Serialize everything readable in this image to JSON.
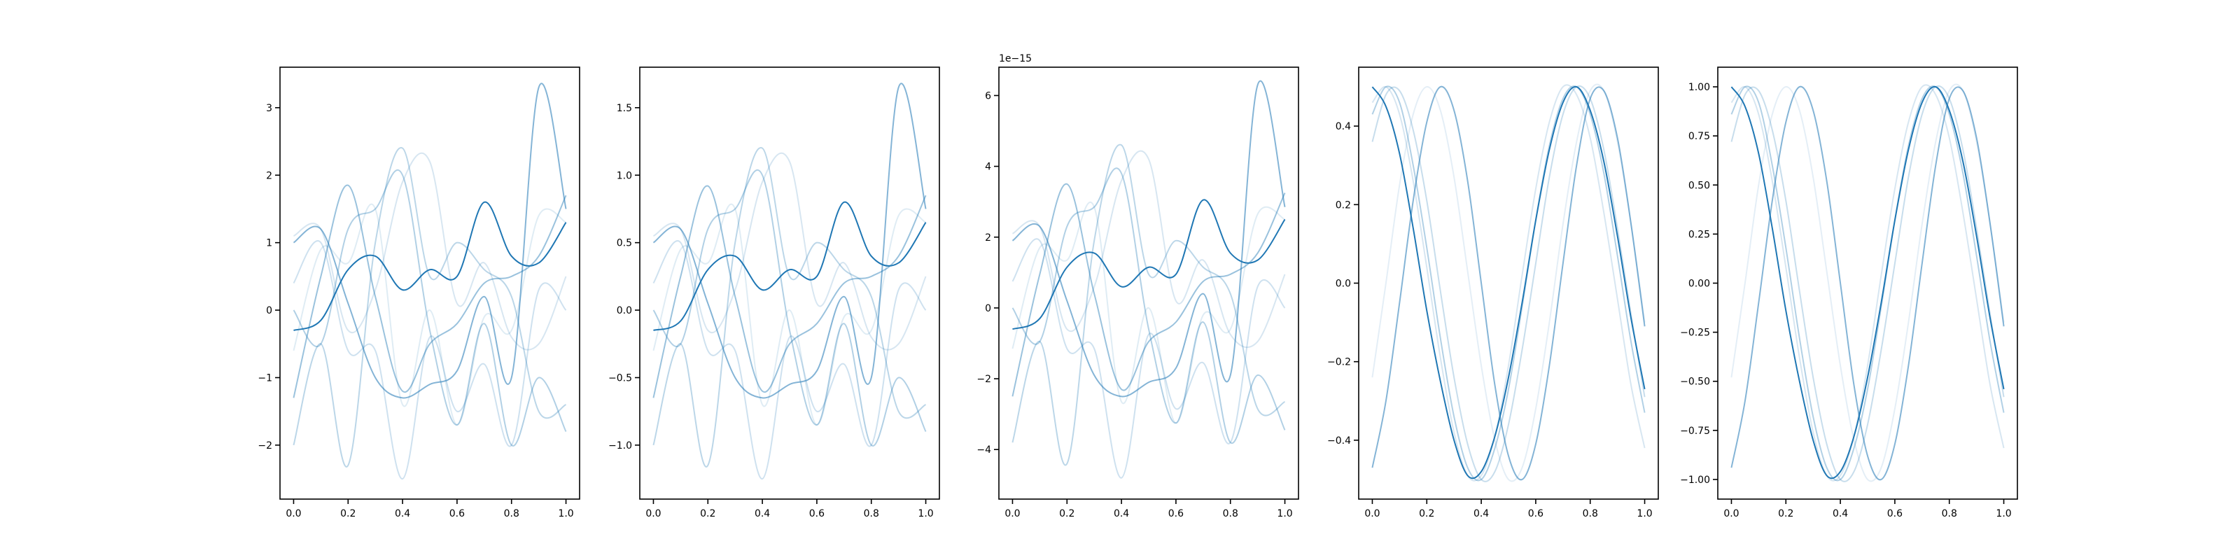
{
  "figure": {
    "background": "#ffffff",
    "line_color": "#1f77b4",
    "frame_color": "#000000"
  },
  "chart_data": [
    {
      "type": "line",
      "xlim": [
        -0.05,
        1.05
      ],
      "ylim": [
        -2.8,
        3.6
      ],
      "xticks": [
        0,
        0.2,
        0.4,
        0.6,
        0.8,
        1
      ],
      "xtick_labels": [
        "0.0",
        "0.2",
        "0.4",
        "0.6",
        "0.8",
        "1.0"
      ],
      "yticks": [
        -2,
        -1,
        0,
        1,
        2,
        3
      ],
      "ytick_labels": [
        "−2",
        "−1",
        "0",
        "1",
        "2",
        "3"
      ],
      "offset_text": "",
      "x": [
        0,
        0.1,
        0.2,
        0.3,
        0.4,
        0.5,
        0.6,
        0.7,
        0.8,
        0.9,
        1.0
      ],
      "series": [
        {
          "opacity": 1.0,
          "values": [
            -0.3,
            -0.15,
            0.6,
            0.8,
            0.3,
            0.6,
            0.5,
            1.6,
            0.8,
            0.7,
            1.3
          ]
        },
        {
          "opacity": 0.55,
          "values": [
            1.0,
            1.2,
            0.1,
            -1.0,
            -1.3,
            -1.1,
            -0.9,
            0.2,
            -1.0,
            3.3,
            1.5
          ]
        },
        {
          "opacity": 0.45,
          "values": [
            -1.3,
            0.5,
            1.85,
            0.2,
            -1.2,
            -0.5,
            -0.2,
            0.4,
            0.5,
            0.8,
            1.7
          ]
        },
        {
          "opacity": 0.35,
          "values": [
            0.0,
            -0.5,
            1.2,
            1.5,
            2.0,
            -0.3,
            -1.7,
            -0.2,
            -2.0,
            -1.0,
            -1.8
          ]
        },
        {
          "opacity": 0.3,
          "values": [
            -2.0,
            -0.5,
            -2.3,
            1.0,
            2.4,
            0.5,
            1.0,
            0.6,
            0.2,
            -1.5,
            -1.4
          ]
        },
        {
          "opacity": 0.22,
          "values": [
            0.4,
            1.0,
            -0.6,
            -0.6,
            -2.5,
            -0.4,
            -1.5,
            -0.8,
            -2.0,
            0.3,
            0.0
          ]
        },
        {
          "opacity": 0.18,
          "values": [
            1.1,
            1.2,
            -0.3,
            0.3,
            1.9,
            2.2,
            0.1,
            0.7,
            -0.4,
            -0.5,
            0.5
          ]
        },
        {
          "opacity": 0.14,
          "values": [
            -0.6,
            0.9,
            0.7,
            1.5,
            -1.4,
            0.0,
            -1.7,
            -0.1,
            -0.3,
            1.4,
            1.3
          ]
        }
      ]
    },
    {
      "type": "line",
      "xlim": [
        -0.05,
        1.05
      ],
      "ylim": [
        -1.4,
        1.8
      ],
      "xticks": [
        0,
        0.2,
        0.4,
        0.6,
        0.8,
        1
      ],
      "xtick_labels": [
        "0.0",
        "0.2",
        "0.4",
        "0.6",
        "0.8",
        "1.0"
      ],
      "yticks": [
        -1.0,
        -0.5,
        0.0,
        0.5,
        1.0,
        1.5
      ],
      "ytick_labels": [
        "−1.0",
        "−0.5",
        "0.0",
        "0.5",
        "1.0",
        "1.5"
      ],
      "offset_text": "",
      "x": [
        0,
        0.1,
        0.2,
        0.3,
        0.4,
        0.5,
        0.6,
        0.7,
        0.8,
        0.9,
        1.0
      ],
      "series": [
        {
          "opacity": 1.0,
          "values": [
            -0.15,
            -0.08,
            0.3,
            0.4,
            0.15,
            0.3,
            0.25,
            0.8,
            0.4,
            0.35,
            0.65
          ]
        },
        {
          "opacity": 0.55,
          "values": [
            0.5,
            0.6,
            0.05,
            -0.5,
            -0.65,
            -0.55,
            -0.45,
            0.1,
            -0.5,
            1.65,
            0.75
          ]
        },
        {
          "opacity": 0.45,
          "values": [
            -0.65,
            0.25,
            0.92,
            0.1,
            -0.6,
            -0.25,
            -0.1,
            0.2,
            0.25,
            0.4,
            0.85
          ]
        },
        {
          "opacity": 0.35,
          "values": [
            0.0,
            -0.25,
            0.6,
            0.75,
            1.0,
            -0.15,
            -0.85,
            -0.1,
            -1.0,
            -0.5,
            -0.9
          ]
        },
        {
          "opacity": 0.3,
          "values": [
            -1.0,
            -0.25,
            -1.15,
            0.5,
            1.2,
            0.25,
            0.5,
            0.3,
            0.1,
            -0.75,
            -0.7
          ]
        },
        {
          "opacity": 0.22,
          "values": [
            0.2,
            0.5,
            -0.3,
            -0.3,
            -1.25,
            -0.2,
            -0.75,
            -0.4,
            -1.0,
            0.15,
            0.0
          ]
        },
        {
          "opacity": 0.18,
          "values": [
            0.55,
            0.6,
            -0.15,
            0.15,
            0.95,
            1.1,
            0.05,
            0.35,
            -0.2,
            -0.25,
            0.25
          ]
        },
        {
          "opacity": 0.14,
          "values": [
            -0.3,
            0.45,
            0.35,
            0.75,
            -0.7,
            0.0,
            -0.85,
            -0.05,
            -0.15,
            0.7,
            0.65
          ]
        }
      ]
    },
    {
      "type": "line",
      "xlim": [
        -0.05,
        1.05
      ],
      "ylim": [
        -5.4,
        6.8
      ],
      "xticks": [
        0,
        0.2,
        0.4,
        0.6,
        0.8,
        1
      ],
      "xtick_labels": [
        "0.0",
        "0.2",
        "0.4",
        "0.6",
        "0.8",
        "1.0"
      ],
      "yticks": [
        -4,
        -2,
        0,
        2,
        4,
        6
      ],
      "ytick_labels": [
        "−4",
        "−2",
        "0",
        "2",
        "4",
        "6"
      ],
      "offset_text": "1e−15",
      "x": [
        0,
        0.1,
        0.2,
        0.3,
        0.4,
        0.5,
        0.6,
        0.7,
        0.8,
        0.9,
        1.0
      ],
      "series": [
        {
          "opacity": 1.0,
          "values": [
            -0.6,
            -0.3,
            1.15,
            1.55,
            0.6,
            1.15,
            0.95,
            3.05,
            1.55,
            1.35,
            2.5
          ]
        },
        {
          "opacity": 0.55,
          "values": [
            1.9,
            2.3,
            0.2,
            -1.9,
            -2.5,
            -2.1,
            -1.7,
            0.4,
            -1.9,
            6.3,
            2.85
          ]
        },
        {
          "opacity": 0.45,
          "values": [
            -2.5,
            0.95,
            3.5,
            0.4,
            -2.3,
            -0.95,
            -0.4,
            0.75,
            0.95,
            1.55,
            3.25
          ]
        },
        {
          "opacity": 0.35,
          "values": [
            0.0,
            -0.95,
            2.3,
            2.85,
            3.8,
            -0.6,
            -3.25,
            -0.4,
            -3.8,
            -1.9,
            -3.45
          ]
        },
        {
          "opacity": 0.3,
          "values": [
            -3.8,
            -0.95,
            -4.4,
            1.9,
            4.6,
            0.95,
            1.9,
            1.15,
            0.4,
            -2.85,
            -2.65
          ]
        },
        {
          "opacity": 0.22,
          "values": [
            0.75,
            1.9,
            -1.15,
            -1.15,
            -4.8,
            -0.75,
            -2.85,
            -1.55,
            -3.8,
            0.6,
            0.0
          ]
        },
        {
          "opacity": 0.18,
          "values": [
            2.1,
            2.3,
            -0.6,
            0.6,
            3.6,
            4.2,
            0.2,
            1.35,
            -0.75,
            -0.95,
            0.95
          ]
        },
        {
          "opacity": 0.14,
          "values": [
            -1.15,
            1.7,
            1.35,
            2.85,
            -2.65,
            0.0,
            -3.25,
            -0.2,
            -0.6,
            2.65,
            2.5
          ]
        }
      ]
    },
    {
      "type": "line",
      "xlim": [
        -0.05,
        1.05
      ],
      "ylim": [
        -0.55,
        0.55
      ],
      "xticks": [
        0,
        0.2,
        0.4,
        0.6,
        0.8,
        1
      ],
      "xtick_labels": [
        "0.0",
        "0.2",
        "0.4",
        "0.6",
        "0.8",
        "1.0"
      ],
      "yticks": [
        -0.4,
        -0.2,
        0.0,
        0.2,
        0.4
      ],
      "ytick_labels": [
        "−0.4",
        "−0.2",
        "0.0",
        "0.2",
        "0.4"
      ],
      "offset_text": "",
      "x": [
        0,
        0.05,
        0.1,
        0.15,
        0.2,
        0.25,
        0.3,
        0.35,
        0.4,
        0.45,
        0.5,
        0.55,
        0.6,
        0.65,
        0.7,
        0.75,
        0.8,
        0.85,
        0.9,
        0.95,
        1.0
      ],
      "series": [
        {
          "opacity": 1.0,
          "values": [
            0.5,
            0.45,
            0.33,
            0.14,
            -0.07,
            -0.25,
            -0.4,
            -0.49,
            -0.48,
            -0.39,
            -0.24,
            -0.05,
            0.16,
            0.34,
            0.46,
            0.5,
            0.44,
            0.31,
            0.12,
            -0.09,
            -0.27
          ]
        },
        {
          "opacity": 0.55,
          "values": [
            -0.47,
            -0.3,
            -0.05,
            0.21,
            0.41,
            0.5,
            0.44,
            0.26,
            0.0,
            -0.26,
            -0.44,
            -0.5,
            -0.41,
            -0.21,
            0.05,
            0.3,
            0.47,
            0.49,
            0.37,
            0.15,
            -0.11
          ]
        },
        {
          "opacity": 0.35,
          "values": [
            0.43,
            0.5,
            0.46,
            0.3,
            0.09,
            -0.14,
            -0.34,
            -0.47,
            -0.5,
            -0.42,
            -0.27,
            -0.06,
            0.16,
            0.35,
            0.47,
            0.5,
            0.43,
            0.28,
            0.07,
            -0.15,
            -0.33
          ]
        },
        {
          "opacity": 0.25,
          "values": [
            0.36,
            0.48,
            0.49,
            0.39,
            0.21,
            -0.02,
            -0.24,
            -0.41,
            -0.5,
            -0.48,
            -0.36,
            -0.17,
            0.05,
            0.27,
            0.43,
            0.5,
            0.47,
            0.34,
            0.14,
            -0.08,
            -0.29
          ]
        },
        {
          "opacity": 0.18,
          "values": [
            0.46,
            0.5,
            0.43,
            0.26,
            0.04,
            -0.19,
            -0.38,
            -0.49,
            -0.49,
            -0.39,
            -0.21,
            0.02,
            0.24,
            0.41,
            0.5,
            0.48,
            0.37,
            0.18,
            -0.04,
            -0.26,
            -0.42
          ]
        },
        {
          "opacity": 0.12,
          "values": [
            -0.24,
            0.0,
            0.25,
            0.43,
            0.5,
            0.44,
            0.27,
            0.03,
            -0.21,
            -0.4,
            -0.5,
            -0.47,
            -0.32,
            -0.1,
            0.15,
            0.36,
            0.49,
            0.49,
            0.36,
            0.15,
            -0.1
          ]
        }
      ]
    },
    {
      "type": "line",
      "xlim": [
        -0.05,
        1.05
      ],
      "ylim": [
        -1.1,
        1.1
      ],
      "xticks": [
        0,
        0.2,
        0.4,
        0.6,
        0.8,
        1
      ],
      "xtick_labels": [
        "0.0",
        "0.2",
        "0.4",
        "0.6",
        "0.8",
        "1.0"
      ],
      "yticks": [
        -1.0,
        -0.75,
        -0.5,
        -0.25,
        0.0,
        0.25,
        0.5,
        0.75,
        1.0
      ],
      "ytick_labels": [
        "−1.00",
        "−0.75",
        "−0.50",
        "−0.25",
        "0.00",
        "0.25",
        "0.50",
        "0.75",
        "1.00"
      ],
      "offset_text": "",
      "x": [
        0,
        0.05,
        0.1,
        0.15,
        0.2,
        0.25,
        0.3,
        0.35,
        0.4,
        0.45,
        0.5,
        0.55,
        0.6,
        0.65,
        0.7,
        0.75,
        0.8,
        0.85,
        0.9,
        0.95,
        1.0
      ],
      "series": [
        {
          "opacity": 1.0,
          "values": [
            1.0,
            0.9,
            0.66,
            0.28,
            -0.14,
            -0.5,
            -0.8,
            -0.98,
            -0.96,
            -0.78,
            -0.48,
            -0.1,
            0.32,
            0.68,
            0.92,
            1.0,
            0.88,
            0.62,
            0.24,
            -0.18,
            -0.54
          ]
        },
        {
          "opacity": 0.55,
          "values": [
            -0.94,
            -0.6,
            -0.1,
            0.42,
            0.82,
            1.0,
            0.88,
            0.52,
            0.0,
            -0.52,
            -0.88,
            -1.0,
            -0.82,
            -0.42,
            0.1,
            0.6,
            0.94,
            0.98,
            0.74,
            0.3,
            -0.22
          ]
        },
        {
          "opacity": 0.35,
          "values": [
            0.86,
            1.0,
            0.92,
            0.6,
            0.18,
            -0.28,
            -0.68,
            -0.94,
            -1.0,
            -0.84,
            -0.54,
            -0.12,
            0.32,
            0.7,
            0.94,
            1.0,
            0.86,
            0.56,
            0.14,
            -0.3,
            -0.66
          ]
        },
        {
          "opacity": 0.25,
          "values": [
            0.72,
            0.96,
            0.98,
            0.78,
            0.42,
            -0.04,
            -0.48,
            -0.82,
            -1.0,
            -0.96,
            -0.72,
            -0.34,
            0.1,
            0.54,
            0.86,
            1.0,
            0.94,
            0.68,
            0.28,
            -0.16,
            -0.58
          ]
        },
        {
          "opacity": 0.18,
          "values": [
            0.92,
            1.0,
            0.86,
            0.52,
            0.08,
            -0.38,
            -0.76,
            -0.98,
            -0.98,
            -0.78,
            -0.42,
            0.04,
            0.48,
            0.82,
            1.0,
            0.96,
            0.74,
            0.36,
            -0.08,
            -0.52,
            -0.84
          ]
        },
        {
          "opacity": 0.12,
          "values": [
            -0.48,
            0.0,
            0.5,
            0.86,
            1.0,
            0.88,
            0.54,
            0.06,
            -0.42,
            -0.8,
            -1.0,
            -0.94,
            -0.64,
            -0.2,
            0.3,
            0.72,
            0.98,
            0.98,
            0.72,
            0.3,
            -0.2
          ]
        }
      ]
    }
  ]
}
